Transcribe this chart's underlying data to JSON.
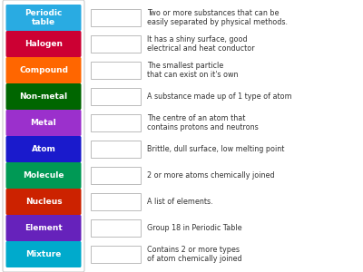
{
  "terms": [
    {
      "label": "Periodic\ntable",
      "color": "#29ABE2"
    },
    {
      "label": "Halogen",
      "color": "#CC0033"
    },
    {
      "label": "Compound",
      "color": "#FF6600"
    },
    {
      "label": "Non-metal",
      "color": "#006600"
    },
    {
      "label": "Metal",
      "color": "#9B30CC"
    },
    {
      "label": "Atom",
      "color": "#1A1ACC"
    },
    {
      "label": "Molecule",
      "color": "#009955"
    },
    {
      "label": "Nucleus",
      "color": "#CC2200"
    },
    {
      "label": "Element",
      "color": "#6622BB"
    },
    {
      "label": "Mixture",
      "color": "#00AACC"
    }
  ],
  "definitions": [
    "Two or more substances that can be\neasily separated by physical methods.",
    "It has a shiny surface, good\nelectrical and heat conductor",
    "The smallest particle\nthat can exist on it's own",
    "A substance made up of 1 type of atom",
    "The centre of an atom that\ncontains protons and neutrons",
    "Brittle, dull surface, low melting point",
    "2 or more atoms chemically joined",
    "A list of elements.",
    "Group 18 in Periodic Table",
    "Contains 2 or more types\nof atom chemically joined"
  ],
  "background": "#FFFFFF",
  "outer_border_color": "#CCCCCC",
  "box_border_color": "#BBBBBB",
  "text_color_label": "#FFFFFF",
  "text_color_def": "#333333",
  "fig_width": 4.0,
  "fig_height": 3.0,
  "dpi": 100
}
